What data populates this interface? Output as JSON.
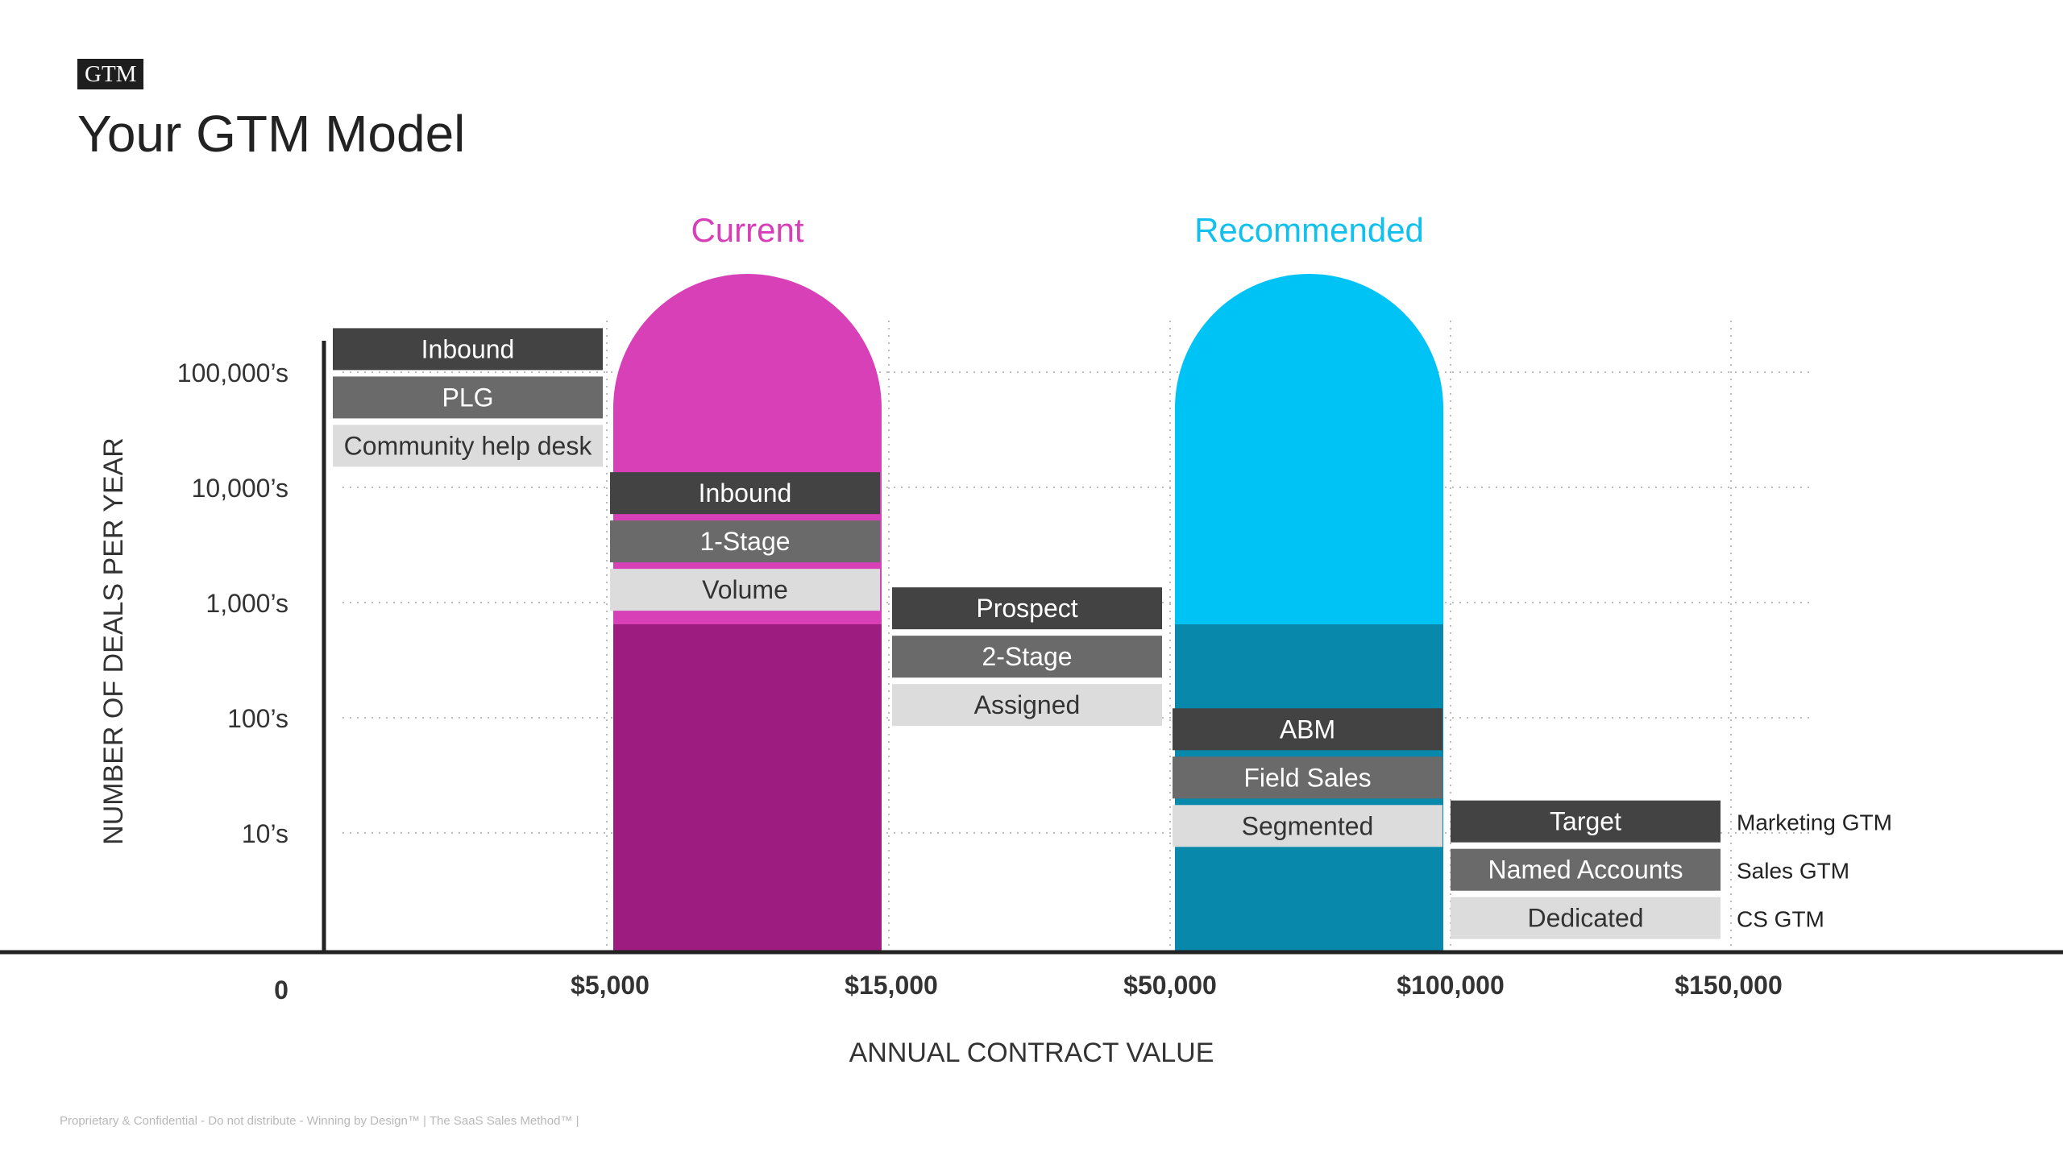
{
  "header": {
    "tag": "GTM",
    "title": "Your GTM Model"
  },
  "footer": {
    "text": "Proprietary & Confidential - Do not distribute - Winning by Design™  |  The SaaS Sales Method™ |"
  },
  "axes": {
    "y_title": "NUMBER OF DEALS PER YEAR",
    "x_title": "ANNUAL CONTRACT VALUE",
    "y_ticks": [
      "10’s",
      "100’s",
      "1,000’s",
      "10,000’s",
      "100,000’s"
    ],
    "x_ticks": [
      "0",
      "$5,000",
      "$15,000",
      "$50,000",
      "$100,000",
      "$150,000"
    ]
  },
  "pills": [
    {
      "name": "current",
      "label": "Current",
      "label_color": "#d63fb8",
      "top_color": "#d840b8",
      "bottom_color": "#9c1c7f",
      "bottom_from_level": 3,
      "column_range": [
        1,
        2
      ]
    },
    {
      "name": "recommended",
      "label": "Recommended",
      "label_color": "#12c0ee",
      "top_color": "#00c3f5",
      "bottom_color": "#0888ab",
      "bottom_from_level": 3,
      "column_range": [
        3,
        4
      ]
    }
  ],
  "motions": [
    {
      "column": 0,
      "top_level": 5.2,
      "items": [
        "Inbound",
        "PLG",
        "Community help desk"
      ]
    },
    {
      "column": 1,
      "top_level": 3.95,
      "items": [
        "Inbound",
        "1-Stage",
        "Volume"
      ]
    },
    {
      "column": 2,
      "top_level": 2.95,
      "items": [
        "Prospect",
        "2-Stage",
        "Assigned"
      ]
    },
    {
      "column": 3,
      "top_level": 1.9,
      "items": [
        "ABM",
        "Field Sales",
        "Segmented"
      ]
    },
    {
      "column": 4,
      "top_level": 1.1,
      "items": [
        "Target",
        "Named Accounts",
        "Dedicated"
      ]
    }
  ],
  "box_colors": [
    "#434343",
    "#6a6a6a",
    "#dcdcdc"
  ],
  "box_text_colors": [
    "#ffffff",
    "#ffffff",
    "#333333"
  ],
  "legend": [
    "Marketing GTM",
    "Sales GTM",
    "CS GTM"
  ]
}
